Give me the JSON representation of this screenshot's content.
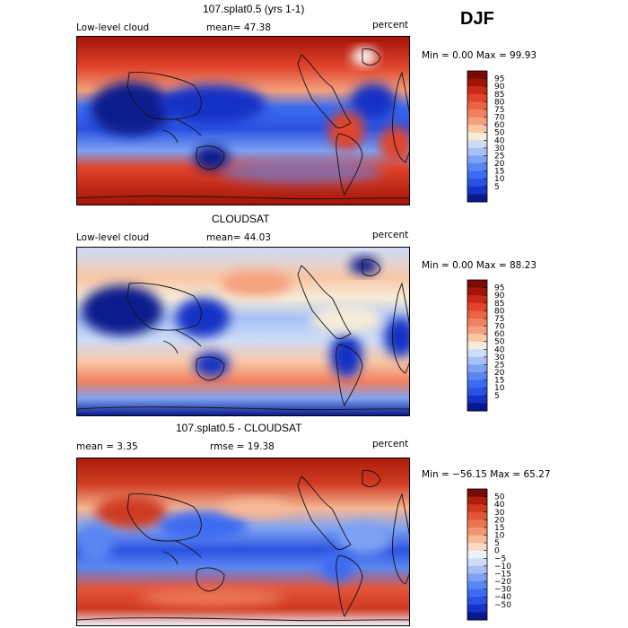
{
  "season": "DJF",
  "colors": {
    "abs_scale": [
      "#0a1a8c",
      "#1533c4",
      "#2a52e0",
      "#3d6bf0",
      "#5a86f2",
      "#7ea2f4",
      "#a7c1f6",
      "#cddcf7",
      "#f6ecd8",
      "#f8c7a6",
      "#f4a07d",
      "#f08060",
      "#eb6244",
      "#e0442c",
      "#c92a18",
      "#a31408",
      "#7a0a04"
    ],
    "diff_scale": [
      "#0a1a8c",
      "#1533c4",
      "#2a52e0",
      "#3d6bf0",
      "#5a86f2",
      "#7ea2f4",
      "#a7c1f6",
      "#cddcf7",
      "#eef2fb",
      "#f8d9c2",
      "#f6b896",
      "#f29672",
      "#ec7654",
      "#e3553a",
      "#cf3a22",
      "#ad1e0e",
      "#7a0a04"
    ]
  },
  "panels": [
    {
      "id": "model",
      "title": "107.splat0.5 (yrs 1-1)",
      "left_label": "Low-level cloud",
      "center_label": "mean=  47.38",
      "right_label": "percent",
      "minmax": "Min =    0.00 Max =  99.93",
      "colorbar_ticks": [
        "95",
        "90",
        "85",
        "80",
        "75",
        "70",
        "60",
        "50",
        "40",
        "30",
        "25",
        "20",
        "15",
        "10",
        "5"
      ]
    },
    {
      "id": "obs",
      "title": "CLOUDSAT",
      "left_label": "Low-level cloud",
      "center_label": "mean=  44.03",
      "right_label": "percent",
      "minmax": "Min =    0.00 Max =  88.23",
      "colorbar_ticks": [
        "95",
        "90",
        "85",
        "80",
        "75",
        "70",
        "60",
        "50",
        "40",
        "30",
        "25",
        "20",
        "15",
        "10",
        "5"
      ]
    },
    {
      "id": "diff",
      "title": "107.splat0.5 - CLOUDSAT",
      "left_label": "mean =    3.35",
      "center_label": "rmse =  19.38",
      "right_label": "percent",
      "minmax": "Min = −56.15 Max =  65.27",
      "colorbar_ticks": [
        "50",
        "40",
        "30",
        "20",
        "15",
        "10",
        "5",
        "0",
        "−5",
        "−10",
        "−15",
        "−20",
        "−30",
        "−40",
        "−50"
      ]
    }
  ]
}
